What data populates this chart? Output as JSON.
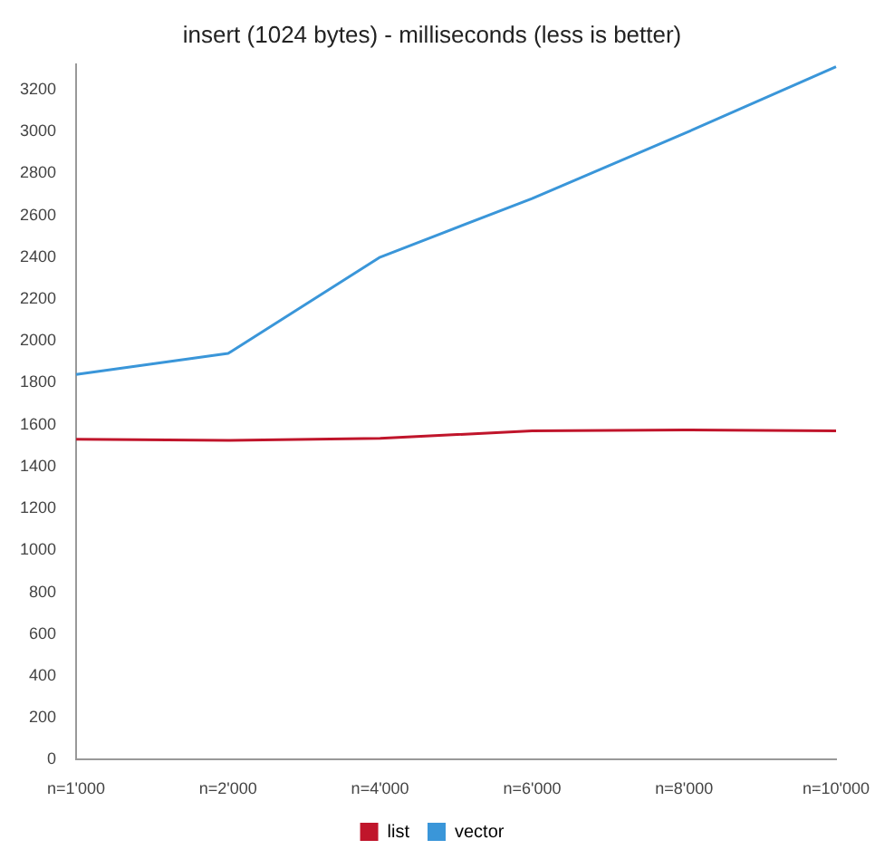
{
  "chart_data": {
    "type": "line",
    "title": "insert (1024 bytes) - milliseconds (less is better)",
    "categories": [
      "n=1'000",
      "n=2'000",
      "n=4'000",
      "n=6'000",
      "n=8'000",
      "n=10'000"
    ],
    "series": [
      {
        "name": "list",
        "color": "#c0152b",
        "values": [
          1530,
          1525,
          1535,
          1570,
          1575,
          1570
        ]
      },
      {
        "name": "vector",
        "color": "#3a96d9",
        "values": [
          1840,
          1940,
          2400,
          2680,
          2990,
          3310
        ]
      }
    ],
    "ylim": [
      0,
      3320
    ],
    "yticks": [
      0,
      200,
      400,
      600,
      800,
      1000,
      1200,
      1400,
      1600,
      1800,
      2000,
      2200,
      2400,
      2600,
      2800,
      3000,
      3200
    ],
    "grid": false,
    "legend": "bottom",
    "marker": "none",
    "line_style": "solid"
  }
}
